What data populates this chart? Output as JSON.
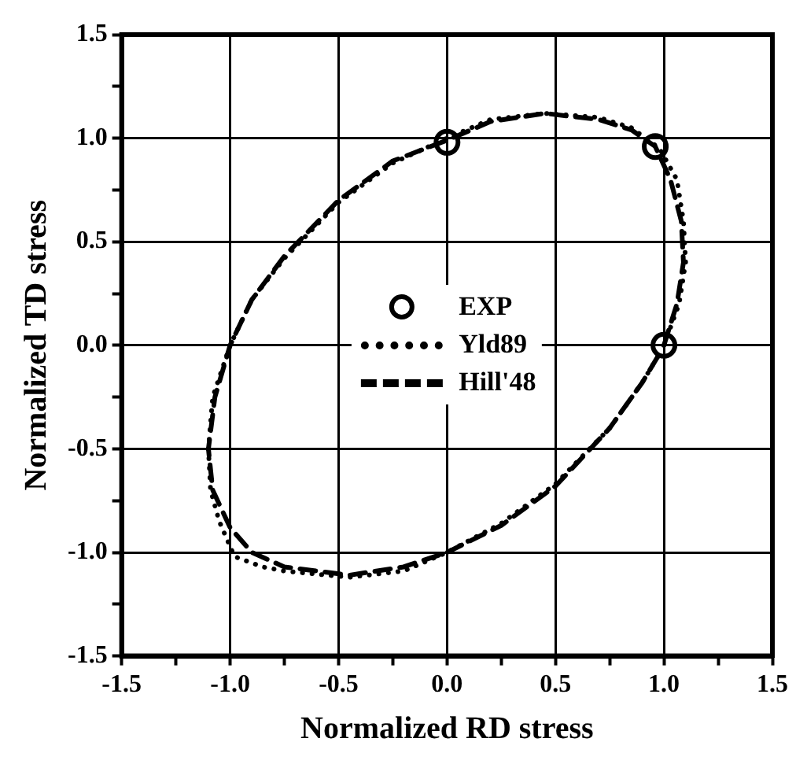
{
  "chart_data": {
    "type": "scatter",
    "xlabel": "Normalized RD stress",
    "ylabel": "Normalized TD stress",
    "xlim": [
      -1.5,
      1.5
    ],
    "ylim": [
      -1.5,
      1.5
    ],
    "xticks": [
      -1.5,
      {
        "value": -1.25,
        "label": null
      },
      {
        "value": -1.0,
        "label": "-1.0"
      },
      {
        "value": -0.75,
        "label": null
      },
      -0.5,
      {
        "value": -0.25,
        "label": null
      },
      {
        "value": 0,
        "label": "0.0"
      },
      {
        "value": 0.25,
        "label": null
      },
      0.5,
      {
        "value": 0.75,
        "label": null
      },
      {
        "value": 1.0,
        "label": "1.0"
      },
      {
        "value": 1.25,
        "label": null
      },
      1.5
    ],
    "yticks": [
      -1.5,
      {
        "value": -1.25,
        "label": null
      },
      {
        "value": -1.0,
        "label": "-1.0"
      },
      {
        "value": -0.75,
        "label": null
      },
      -0.5,
      {
        "value": -0.25,
        "label": null
      },
      {
        "value": 0,
        "label": "0.0"
      },
      {
        "value": 0.25,
        "label": null
      },
      0.5,
      {
        "value": 0.75,
        "label": null
      },
      {
        "value": 1.0,
        "label": "1.0"
      },
      {
        "value": 1.25,
        "label": null
      },
      1.5
    ],
    "grid": true,
    "legend": "center",
    "series": [
      {
        "name": "EXP",
        "type": "scatter",
        "marker": "circle",
        "color": "#000000",
        "x": [
          0,
          0.96,
          1.0
        ],
        "values": [
          0.98,
          0.96,
          0
        ]
      },
      {
        "name": "Yld89",
        "type": "line",
        "marker": "none",
        "line_style": "dotted",
        "color": "#000000",
        "x": [
          1.0,
          1.07,
          1.1,
          1.09,
          1.06,
          0.98,
          0.85,
          0.7,
          0.45,
          0.2,
          0,
          -0.25,
          -0.5,
          -0.75,
          -0.9,
          -1.0,
          -1.08,
          -1.1,
          -1.09,
          -1.05,
          -0.98,
          -0.85,
          -0.75,
          -0.45,
          -0.2,
          0,
          0.25,
          0.5,
          0.75,
          0.9,
          0.98
        ],
        "values": [
          0,
          0.2,
          0.4,
          0.6,
          0.8,
          0.95,
          1.05,
          1.1,
          1.12,
          1.09,
          1.0,
          0.88,
          0.69,
          0.42,
          0.22,
          0,
          -0.25,
          -0.5,
          -0.7,
          -0.85,
          -1.02,
          -1.07,
          -1.09,
          -1.12,
          -1.09,
          -1.0,
          -0.86,
          -0.67,
          -0.4,
          -0.18,
          -0.04
        ]
      },
      {
        "name": "Hill'48",
        "type": "line",
        "marker": "none",
        "line_style": "dashed",
        "color": "#000000",
        "x": [
          1.0,
          1.06,
          1.09,
          1.08,
          1.03,
          0.96,
          0.85,
          0.7,
          0.45,
          0.2,
          0,
          -0.25,
          -0.5,
          -0.75,
          -0.9,
          -1.0,
          -1.07,
          -1.1,
          -1.08,
          -1.0,
          -0.9,
          -0.75,
          -0.45,
          -0.2,
          0,
          0.25,
          0.5,
          0.75,
          0.9,
          0.98
        ],
        "values": [
          0,
          0.2,
          0.4,
          0.6,
          0.8,
          0.96,
          1.04,
          1.09,
          1.12,
          1.08,
          0.99,
          0.89,
          0.7,
          0.43,
          0.22,
          0,
          -0.25,
          -0.5,
          -0.7,
          -0.88,
          -1.0,
          -1.07,
          -1.11,
          -1.07,
          -1.0,
          -0.87,
          -0.68,
          -0.4,
          -0.18,
          -0.04
        ]
      }
    ]
  }
}
